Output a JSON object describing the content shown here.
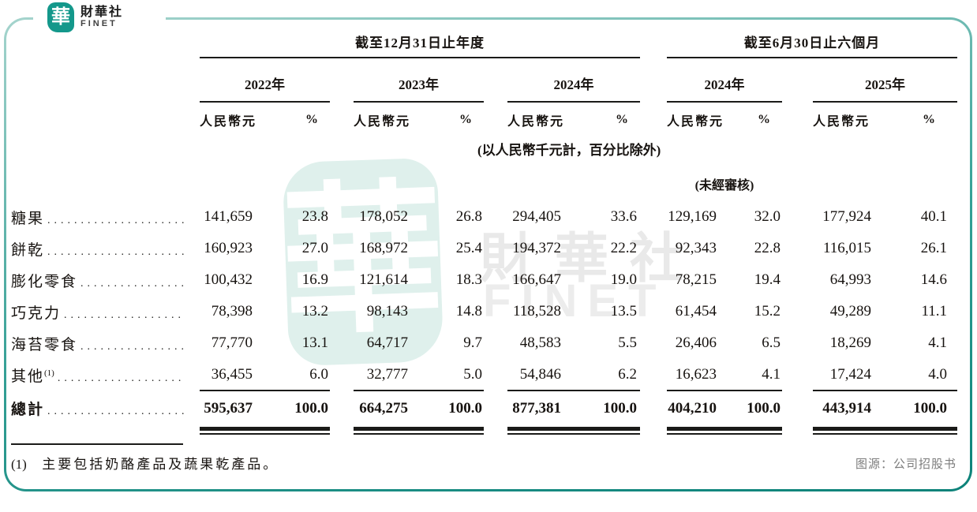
{
  "logo": {
    "mark": "華",
    "name_zh": "財華社",
    "name_en": "FINET"
  },
  "watermark": {
    "stamp_char": "華",
    "text_zh": "財華社",
    "text_en": "FINET"
  },
  "table": {
    "group_headers": [
      {
        "label": "截至12月31日止年度"
      },
      {
        "label": "截至6月30日止六個月"
      }
    ],
    "year_headers": [
      "2022年",
      "2023年",
      "2024年",
      "2024年",
      "2025年"
    ],
    "col_headers": {
      "amount": "人民幣元",
      "pct": "%"
    },
    "unit_note": "(以人民幣千元計，百分比除外)",
    "unaudited_note": "(未經審核)",
    "rows": [
      {
        "label": "糖果",
        "sup": "",
        "values": [
          "141,659",
          "23.8",
          "178,052",
          "26.8",
          "294,405",
          "33.6",
          "129,169",
          "32.0",
          "177,924",
          "40.1"
        ]
      },
      {
        "label": "餅乾",
        "sup": "",
        "values": [
          "160,923",
          "27.0",
          "168,972",
          "25.4",
          "194,372",
          "22.2",
          "92,343",
          "22.8",
          "116,015",
          "26.1"
        ]
      },
      {
        "label": "膨化零食",
        "sup": "",
        "values": [
          "100,432",
          "16.9",
          "121,614",
          "18.3",
          "166,647",
          "19.0",
          "78,215",
          "19.4",
          "64,993",
          "14.6"
        ]
      },
      {
        "label": "巧克力",
        "sup": "",
        "values": [
          "78,398",
          "13.2",
          "98,143",
          "14.8",
          "118,528",
          "13.5",
          "61,454",
          "15.2",
          "49,289",
          "11.1"
        ]
      },
      {
        "label": "海苔零食",
        "sup": "",
        "values": [
          "77,770",
          "13.1",
          "64,717",
          "9.7",
          "48,583",
          "5.5",
          "26,406",
          "6.5",
          "18,269",
          "4.1"
        ]
      },
      {
        "label": "其他",
        "sup": "(1)",
        "values": [
          "36,455",
          "6.0",
          "32,777",
          "5.0",
          "54,846",
          "6.2",
          "16,623",
          "4.1",
          "17,424",
          "4.0"
        ]
      }
    ],
    "total": {
      "label": "總計",
      "values": [
        "595,637",
        "100.0",
        "664,275",
        "100.0",
        "877,381",
        "100.0",
        "404,210",
        "100.0",
        "443,914",
        "100.0"
      ]
    }
  },
  "footnote": {
    "marker": "(1)",
    "text": "主要包括奶酪產品及蔬果乾產品。"
  },
  "source": "图源：公司招股书",
  "colors": {
    "brand_teal": "#14988b",
    "frame_gradient_top": "#a5d4cd",
    "frame_gradient_bottom": "#0c8279",
    "stamp_teal": "#dff0ec",
    "text_black": "#171310",
    "source_gray": "#7d7d7d"
  }
}
